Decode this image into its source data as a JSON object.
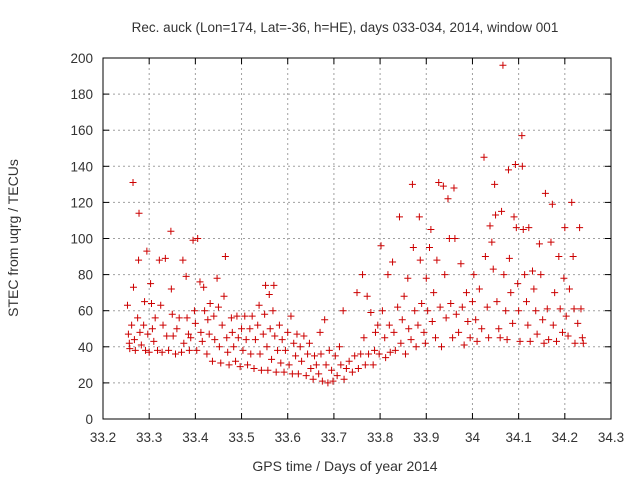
{
  "chart_data": {
    "type": "scatter",
    "title": "Rec. auck (Lon=174, Lat=-36, h=HE), days 033-034, 2014, window 001",
    "xlabel": "GPS time / Days of year 2014",
    "ylabel": "STEC from uqrg / TECUs",
    "xlim": [
      33.2,
      34.3
    ],
    "ylim": [
      0,
      200
    ],
    "xticks": [
      "33.2",
      "33.3",
      "33.4",
      "33.5",
      "33.6",
      "33.7",
      "33.8",
      "33.9",
      "34",
      "34.1",
      "34.2",
      "34.3"
    ],
    "yticks": [
      "0",
      "20",
      "40",
      "60",
      "80",
      "100",
      "120",
      "140",
      "160",
      "180",
      "200"
    ],
    "grid": true,
    "marker": "plus",
    "color": "#cc0000",
    "points": [
      [
        33.253,
        63
      ],
      [
        33.255,
        47
      ],
      [
        33.257,
        42
      ],
      [
        33.258,
        39
      ],
      [
        33.262,
        52
      ],
      [
        33.265,
        131
      ],
      [
        33.266,
        73
      ],
      [
        33.268,
        44
      ],
      [
        33.27,
        38
      ],
      [
        33.275,
        56
      ],
      [
        33.277,
        88
      ],
      [
        33.278,
        114
      ],
      [
        33.28,
        48
      ],
      [
        33.283,
        41
      ],
      [
        33.288,
        52
      ],
      [
        33.29,
        65
      ],
      [
        33.292,
        38
      ],
      [
        33.295,
        93
      ],
      [
        33.297,
        47
      ],
      [
        33.3,
        37
      ],
      [
        33.303,
        75
      ],
      [
        33.305,
        64
      ],
      [
        33.307,
        50
      ],
      [
        33.31,
        43
      ],
      [
        33.313,
        56
      ],
      [
        33.318,
        38
      ],
      [
        33.322,
        88
      ],
      [
        33.325,
        63
      ],
      [
        33.328,
        37
      ],
      [
        33.33,
        52
      ],
      [
        33.335,
        89
      ],
      [
        33.338,
        46
      ],
      [
        33.342,
        38
      ],
      [
        33.347,
        104
      ],
      [
        33.348,
        72
      ],
      [
        33.35,
        58
      ],
      [
        33.352,
        46
      ],
      [
        33.357,
        36
      ],
      [
        33.36,
        50
      ],
      [
        33.365,
        56
      ],
      [
        33.37,
        37
      ],
      [
        33.373,
        88
      ],
      [
        33.375,
        42
      ],
      [
        33.38,
        79
      ],
      [
        33.382,
        56
      ],
      [
        33.385,
        47
      ],
      [
        33.387,
        38
      ],
      [
        33.39,
        45
      ],
      [
        33.395,
        99
      ],
      [
        33.398,
        60
      ],
      [
        33.4,
        53
      ],
      [
        33.403,
        38
      ],
      [
        33.405,
        100
      ],
      [
        33.41,
        76
      ],
      [
        33.412,
        48
      ],
      [
        33.415,
        43
      ],
      [
        33.418,
        73
      ],
      [
        33.42,
        60
      ],
      [
        33.425,
        36
      ],
      [
        33.427,
        55
      ],
      [
        33.43,
        47
      ],
      [
        33.432,
        64
      ],
      [
        33.437,
        32
      ],
      [
        33.44,
        57
      ],
      [
        33.442,
        44
      ],
      [
        33.447,
        78
      ],
      [
        33.45,
        62
      ],
      [
        33.452,
        40
      ],
      [
        33.455,
        31
      ],
      [
        33.458,
        52
      ],
      [
        33.462,
        68
      ],
      [
        33.465,
        90
      ],
      [
        33.468,
        45
      ],
      [
        33.47,
        37
      ],
      [
        33.473,
        30
      ],
      [
        33.478,
        56
      ],
      [
        33.48,
        48
      ],
      [
        33.483,
        40
      ],
      [
        33.487,
        32
      ],
      [
        33.49,
        57
      ],
      [
        33.493,
        45
      ],
      [
        33.497,
        29
      ],
      [
        33.5,
        50
      ],
      [
        33.503,
        38
      ],
      [
        33.507,
        57
      ],
      [
        33.51,
        44
      ],
      [
        33.513,
        30
      ],
      [
        33.518,
        50
      ],
      [
        33.52,
        36
      ],
      [
        33.523,
        57
      ],
      [
        33.527,
        28
      ],
      [
        33.53,
        44
      ],
      [
        33.535,
        52
      ],
      [
        33.538,
        63
      ],
      [
        33.54,
        36
      ],
      [
        33.543,
        27
      ],
      [
        33.547,
        47
      ],
      [
        33.55,
        58
      ],
      [
        33.552,
        74
      ],
      [
        33.555,
        40
      ],
      [
        33.557,
        27
      ],
      [
        33.56,
        69
      ],
      [
        33.562,
        50
      ],
      [
        33.565,
        33
      ],
      [
        33.568,
        60
      ],
      [
        33.57,
        74
      ],
      [
        33.572,
        46
      ],
      [
        33.575,
        26
      ],
      [
        33.578,
        38
      ],
      [
        33.582,
        52
      ],
      [
        33.585,
        31
      ],
      [
        33.588,
        44
      ],
      [
        33.592,
        26
      ],
      [
        33.595,
        38
      ],
      [
        33.6,
        48
      ],
      [
        33.603,
        30
      ],
      [
        33.607,
        57
      ],
      [
        33.61,
        25
      ],
      [
        33.613,
        42
      ],
      [
        33.617,
        35
      ],
      [
        33.62,
        47
      ],
      [
        33.623,
        25
      ],
      [
        33.627,
        40
      ],
      [
        33.63,
        32
      ],
      [
        33.635,
        46
      ],
      [
        33.64,
        24
      ],
      [
        33.643,
        36
      ],
      [
        33.647,
        42
      ],
      [
        33.65,
        28
      ],
      [
        33.655,
        22
      ],
      [
        33.658,
        35
      ],
      [
        33.662,
        30
      ],
      [
        33.667,
        25
      ],
      [
        33.67,
        48
      ],
      [
        33.672,
        36
      ],
      [
        33.675,
        21
      ],
      [
        33.68,
        55
      ],
      [
        33.683,
        30
      ],
      [
        33.687,
        20
      ],
      [
        33.69,
        38
      ],
      [
        33.695,
        27
      ],
      [
        33.698,
        21
      ],
      [
        33.703,
        35
      ],
      [
        33.707,
        24
      ],
      [
        33.712,
        40
      ],
      [
        33.715,
        30
      ],
      [
        33.72,
        60
      ],
      [
        33.722,
        22
      ],
      [
        33.727,
        28
      ],
      [
        33.733,
        32
      ],
      [
        33.74,
        26
      ],
      [
        33.745,
        35
      ],
      [
        33.75,
        70
      ],
      [
        33.753,
        28
      ],
      [
        33.758,
        36
      ],
      [
        33.762,
        80
      ],
      [
        33.765,
        45
      ],
      [
        33.768,
        30
      ],
      [
        33.772,
        68
      ],
      [
        33.775,
        36
      ],
      [
        33.78,
        59
      ],
      [
        33.785,
        30
      ],
      [
        33.788,
        38
      ],
      [
        33.79,
        48
      ],
      [
        33.795,
        52
      ],
      [
        33.798,
        36
      ],
      [
        33.802,
        96
      ],
      [
        33.805,
        60
      ],
      [
        33.81,
        45
      ],
      [
        33.812,
        34
      ],
      [
        33.817,
        80
      ],
      [
        33.82,
        52
      ],
      [
        33.822,
        37
      ],
      [
        33.827,
        87
      ],
      [
        33.83,
        48
      ],
      [
        33.833,
        38
      ],
      [
        33.838,
        62
      ],
      [
        33.842,
        112
      ],
      [
        33.845,
        42
      ],
      [
        33.848,
        55
      ],
      [
        33.852,
        68
      ],
      [
        33.855,
        36
      ],
      [
        33.86,
        78
      ],
      [
        33.862,
        50
      ],
      [
        33.867,
        44
      ],
      [
        33.87,
        130
      ],
      [
        33.872,
        95
      ],
      [
        33.875,
        60
      ],
      [
        33.878,
        40
      ],
      [
        33.882,
        52
      ],
      [
        33.885,
        112
      ],
      [
        33.887,
        88
      ],
      [
        33.89,
        64
      ],
      [
        33.895,
        48
      ],
      [
        33.898,
        42
      ],
      [
        33.9,
        78
      ],
      [
        33.903,
        60
      ],
      [
        33.907,
        95
      ],
      [
        33.91,
        105
      ],
      [
        33.913,
        54
      ],
      [
        33.916,
        70
      ],
      [
        33.92,
        45
      ],
      [
        33.923,
        88
      ],
      [
        33.927,
        131
      ],
      [
        33.93,
        62
      ],
      [
        33.933,
        40
      ],
      [
        33.937,
        129
      ],
      [
        33.94,
        80
      ],
      [
        33.943,
        56
      ],
      [
        33.947,
        122
      ],
      [
        33.95,
        100
      ],
      [
        33.953,
        64
      ],
      [
        33.957,
        45
      ],
      [
        33.96,
        128
      ],
      [
        33.962,
        100
      ],
      [
        33.965,
        58
      ],
      [
        33.97,
        48
      ],
      [
        33.975,
        86
      ],
      [
        33.978,
        62
      ],
      [
        33.982,
        41
      ],
      [
        33.987,
        70
      ],
      [
        33.99,
        54
      ],
      [
        33.995,
        45
      ],
      [
        34.0,
        65
      ],
      [
        34.003,
        80
      ],
      [
        34.007,
        55
      ],
      [
        34.01,
        43
      ],
      [
        34.015,
        72
      ],
      [
        34.02,
        50
      ],
      [
        34.025,
        145
      ],
      [
        34.028,
        90
      ],
      [
        34.032,
        62
      ],
      [
        34.035,
        45
      ],
      [
        34.038,
        107
      ],
      [
        34.042,
        98
      ],
      [
        34.045,
        83
      ],
      [
        34.048,
        130
      ],
      [
        34.05,
        113
      ],
      [
        34.053,
        65
      ],
      [
        34.057,
        50
      ],
      [
        34.06,
        45
      ],
      [
        34.063,
        115
      ],
      [
        34.066,
        196
      ],
      [
        34.068,
        80
      ],
      [
        34.072,
        60
      ],
      [
        34.075,
        44
      ],
      [
        34.078,
        138
      ],
      [
        34.08,
        89
      ],
      [
        34.083,
        70
      ],
      [
        34.087,
        53
      ],
      [
        34.09,
        112
      ],
      [
        34.093,
        141
      ],
      [
        34.095,
        106
      ],
      [
        34.098,
        75
      ],
      [
        34.1,
        60
      ],
      [
        34.103,
        43
      ],
      [
        34.107,
        157
      ],
      [
        34.108,
        140
      ],
      [
        34.11,
        105
      ],
      [
        34.113,
        80
      ],
      [
        34.117,
        65
      ],
      [
        34.12,
        52
      ],
      [
        34.122,
        106
      ],
      [
        34.125,
        43
      ],
      [
        34.13,
        82
      ],
      [
        34.133,
        72
      ],
      [
        34.137,
        60
      ],
      [
        34.14,
        47
      ],
      [
        34.145,
        97
      ],
      [
        34.148,
        80
      ],
      [
        34.152,
        55
      ],
      [
        34.155,
        42
      ],
      [
        34.158,
        125
      ],
      [
        34.162,
        61
      ],
      [
        34.165,
        44
      ],
      [
        34.17,
        98
      ],
      [
        34.173,
        119
      ],
      [
        34.175,
        52
      ],
      [
        34.178,
        70
      ],
      [
        34.182,
        43
      ],
      [
        34.187,
        90
      ],
      [
        34.19,
        61
      ],
      [
        34.195,
        48
      ],
      [
        34.198,
        78
      ],
      [
        34.2,
        106
      ],
      [
        34.203,
        57
      ],
      [
        34.207,
        46
      ],
      [
        34.21,
        72
      ],
      [
        34.215,
        120
      ],
      [
        34.218,
        90
      ],
      [
        34.22,
        61
      ],
      [
        34.222,
        42
      ],
      [
        34.228,
        53
      ],
      [
        34.232,
        106
      ],
      [
        34.235,
        61
      ],
      [
        34.238,
        45
      ],
      [
        34.24,
        42
      ]
    ]
  }
}
